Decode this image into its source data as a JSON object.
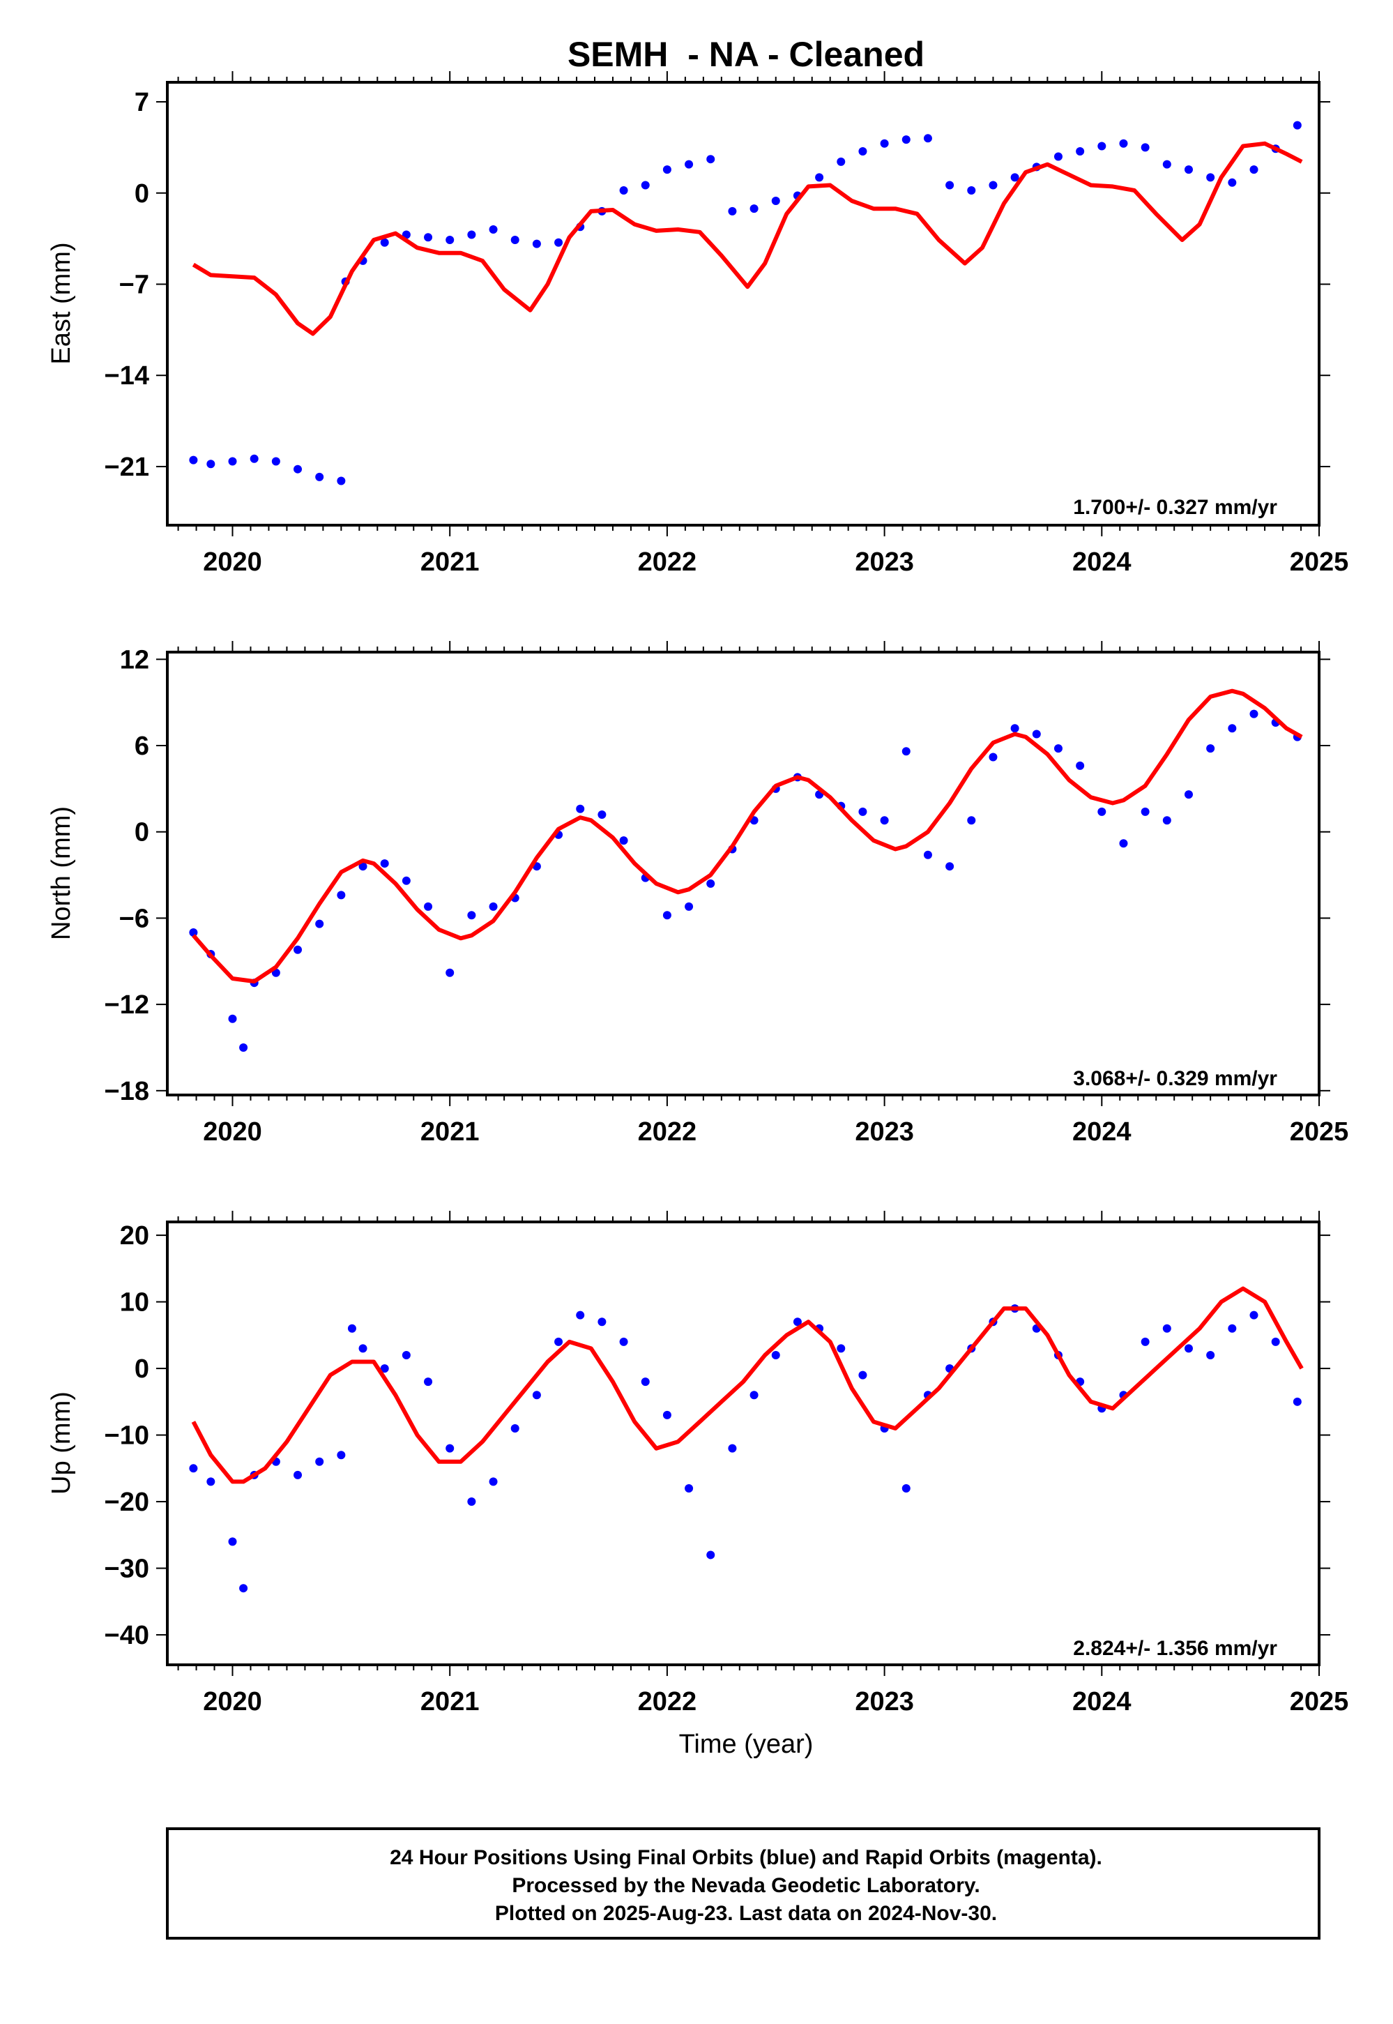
{
  "title": "SEMH  - NA - Cleaned",
  "xlabel": "Time (year)",
  "footer": {
    "lines": [
      "24 Hour Positions Using Final Orbits (blue) and Rapid Orbits (magenta).",
      "Processed by the Nevada Geodetic Laboratory.",
      "Plotted on 2025-Aug-23. Last data on 2024-Nov-30."
    ]
  },
  "colors": {
    "data_points": "#0000ff",
    "model_fit": "#ff0000",
    "frame": "#000000"
  },
  "chart_data": [
    {
      "type": "scatter",
      "panel": "east",
      "ylabel": "East (mm)",
      "rate_text": "1.700+/- 0.327 mm/yr",
      "xlim": [
        2019.7,
        2025.0
      ],
      "ylim": [
        -25.5,
        8.5
      ],
      "xticks": [
        2020,
        2021,
        2022,
        2023,
        2024,
        2025
      ],
      "yticks": [
        7,
        0,
        -7,
        -14,
        -21
      ],
      "series": [
        {
          "role": "final-orbit-positions",
          "x": [
            2019.82,
            2019.9,
            2020.0,
            2020.1,
            2020.2,
            2020.3,
            2020.4,
            2020.5,
            2020.52,
            2020.6,
            2020.7,
            2020.8,
            2020.9,
            2021.0,
            2021.1,
            2021.2,
            2021.3,
            2021.4,
            2021.5,
            2021.6,
            2021.7,
            2021.8,
            2021.9,
            2022.0,
            2022.1,
            2022.2,
            2022.3,
            2022.4,
            2022.5,
            2022.6,
            2022.7,
            2022.8,
            2022.9,
            2023.0,
            2023.1,
            2023.2,
            2023.3,
            2023.4,
            2023.5,
            2023.6,
            2023.7,
            2023.8,
            2023.9,
            2024.0,
            2024.1,
            2024.2,
            2024.3,
            2024.4,
            2024.5,
            2024.6,
            2024.7,
            2024.8,
            2024.9
          ],
          "y": [
            -20.5,
            -20.8,
            -20.6,
            -20.4,
            -20.6,
            -21.2,
            -21.8,
            -22.1,
            -6.8,
            -5.2,
            -3.8,
            -3.2,
            -3.4,
            -3.6,
            -3.2,
            -2.8,
            -3.6,
            -3.9,
            -3.8,
            -2.6,
            -1.4,
            0.2,
            0.6,
            1.8,
            2.2,
            2.6,
            -1.4,
            -1.2,
            -0.6,
            -0.2,
            1.2,
            2.4,
            3.2,
            3.8,
            4.1,
            4.2,
            0.6,
            0.2,
            0.6,
            1.2,
            2.0,
            2.8,
            3.2,
            3.6,
            3.8,
            3.5,
            2.2,
            1.8,
            1.2,
            0.8,
            1.8,
            3.4,
            5.2
          ]
        },
        {
          "role": "model-fit",
          "x": [
            2019.82,
            2019.9,
            2020.0,
            2020.1,
            2020.2,
            2020.3,
            2020.37,
            2020.45,
            2020.55,
            2020.65,
            2020.75,
            2020.85,
            2020.95,
            2021.05,
            2021.15,
            2021.25,
            2021.37,
            2021.45,
            2021.55,
            2021.65,
            2021.75,
            2021.85,
            2021.95,
            2022.05,
            2022.15,
            2022.25,
            2022.37,
            2022.45,
            2022.55,
            2022.65,
            2022.75,
            2022.85,
            2022.95,
            2023.05,
            2023.15,
            2023.25,
            2023.37,
            2023.45,
            2023.55,
            2023.65,
            2023.75,
            2023.85,
            2023.95,
            2024.05,
            2024.15,
            2024.25,
            2024.37,
            2024.45,
            2024.55,
            2024.65,
            2024.75,
            2024.85,
            2024.92
          ],
          "y": [
            -5.5,
            -6.3,
            -6.4,
            -6.5,
            -7.8,
            -10.0,
            -10.8,
            -9.5,
            -6.0,
            -3.6,
            -3.1,
            -4.2,
            -4.6,
            -4.6,
            -5.2,
            -7.4,
            -9.0,
            -7.0,
            -3.4,
            -1.4,
            -1.3,
            -2.4,
            -2.9,
            -2.8,
            -3.0,
            -4.8,
            -7.2,
            -5.4,
            -1.6,
            0.5,
            0.6,
            -0.6,
            -1.2,
            -1.2,
            -1.6,
            -3.6,
            -5.4,
            -4.2,
            -0.8,
            1.6,
            2.2,
            1.4,
            0.6,
            0.5,
            0.2,
            -1.6,
            -3.6,
            -2.4,
            1.2,
            3.6,
            3.8,
            3.0,
            2.4
          ]
        }
      ]
    },
    {
      "type": "scatter",
      "panel": "north",
      "ylabel": "North (mm)",
      "rate_text": "3.068+/- 0.329 mm/yr",
      "xlim": [
        2019.7,
        2025.0
      ],
      "ylim": [
        -18.3,
        12.5
      ],
      "xticks": [
        2020,
        2021,
        2022,
        2023,
        2024,
        2025
      ],
      "yticks": [
        12,
        6,
        0,
        -6,
        -12,
        -18
      ],
      "series": [
        {
          "role": "final-orbit-positions",
          "x": [
            2019.82,
            2019.9,
            2020.0,
            2020.05,
            2020.1,
            2020.2,
            2020.3,
            2020.4,
            2020.5,
            2020.6,
            2020.7,
            2020.8,
            2020.9,
            2021.0,
            2021.1,
            2021.2,
            2021.3,
            2021.4,
            2021.5,
            2021.6,
            2021.7,
            2021.8,
            2021.9,
            2022.0,
            2022.1,
            2022.2,
            2022.3,
            2022.4,
            2022.5,
            2022.6,
            2022.7,
            2022.8,
            2022.9,
            2023.0,
            2023.1,
            2023.2,
            2023.3,
            2023.4,
            2023.5,
            2023.6,
            2023.7,
            2023.8,
            2023.9,
            2024.0,
            2024.1,
            2024.2,
            2024.3,
            2024.4,
            2024.5,
            2024.6,
            2024.7,
            2024.8,
            2024.9
          ],
          "y": [
            -7.0,
            -8.5,
            -13.0,
            -15.0,
            -10.5,
            -9.8,
            -8.2,
            -6.4,
            -4.4,
            -2.4,
            -2.2,
            -3.4,
            -5.2,
            -9.8,
            -5.8,
            -5.2,
            -4.6,
            -2.4,
            -0.2,
            1.6,
            1.2,
            -0.6,
            -3.2,
            -5.8,
            -5.2,
            -3.6,
            -1.2,
            0.8,
            3.0,
            3.8,
            2.6,
            1.8,
            1.4,
            0.8,
            5.6,
            -1.6,
            -2.4,
            0.8,
            5.2,
            7.2,
            6.8,
            5.8,
            4.6,
            1.4,
            -0.8,
            1.4,
            0.8,
            2.6,
            5.8,
            7.2,
            8.2,
            7.6,
            6.6
          ]
        },
        {
          "role": "model-fit",
          "x": [
            2019.82,
            2019.9,
            2020.0,
            2020.1,
            2020.2,
            2020.3,
            2020.4,
            2020.5,
            2020.6,
            2020.65,
            2020.75,
            2020.85,
            2020.95,
            2021.05,
            2021.1,
            2021.2,
            2021.3,
            2021.4,
            2021.5,
            2021.6,
            2021.65,
            2021.75,
            2021.85,
            2021.95,
            2022.05,
            2022.1,
            2022.2,
            2022.3,
            2022.4,
            2022.5,
            2022.6,
            2022.65,
            2022.75,
            2022.85,
            2022.95,
            2023.05,
            2023.1,
            2023.2,
            2023.3,
            2023.4,
            2023.5,
            2023.6,
            2023.65,
            2023.75,
            2023.85,
            2023.95,
            2024.05,
            2024.1,
            2024.2,
            2024.3,
            2024.4,
            2024.5,
            2024.6,
            2024.65,
            2024.75,
            2024.85,
            2024.92
          ],
          "y": [
            -7.2,
            -8.6,
            -10.2,
            -10.4,
            -9.4,
            -7.4,
            -5.0,
            -2.8,
            -2.0,
            -2.2,
            -3.6,
            -5.4,
            -6.8,
            -7.4,
            -7.2,
            -6.2,
            -4.2,
            -1.8,
            0.2,
            1.0,
            0.8,
            -0.4,
            -2.2,
            -3.6,
            -4.2,
            -4.0,
            -3.0,
            -1.0,
            1.4,
            3.2,
            3.8,
            3.6,
            2.4,
            0.8,
            -0.6,
            -1.2,
            -1.0,
            0.0,
            2.0,
            4.4,
            6.2,
            6.8,
            6.6,
            5.4,
            3.6,
            2.4,
            2.0,
            2.2,
            3.2,
            5.4,
            7.8,
            9.4,
            9.8,
            9.6,
            8.6,
            7.2,
            6.6
          ]
        }
      ]
    },
    {
      "type": "scatter",
      "panel": "up",
      "ylabel": "Up (mm)",
      "rate_text": "2.824+/- 1.356 mm/yr",
      "xlim": [
        2019.7,
        2025.0
      ],
      "ylim": [
        -44.5,
        22
      ],
      "xticks": [
        2020,
        2021,
        2022,
        2023,
        2024,
        2025
      ],
      "yticks": [
        20,
        10,
        0,
        -10,
        -20,
        -30,
        -40
      ],
      "series": [
        {
          "role": "final-orbit-positions",
          "x": [
            2019.82,
            2019.9,
            2020.0,
            2020.05,
            2020.1,
            2020.2,
            2020.3,
            2020.4,
            2020.5,
            2020.55,
            2020.6,
            2020.7,
            2020.8,
            2020.9,
            2021.0,
            2021.1,
            2021.2,
            2021.3,
            2021.4,
            2021.5,
            2021.6,
            2021.7,
            2021.8,
            2021.9,
            2022.0,
            2022.1,
            2022.2,
            2022.3,
            2022.4,
            2022.5,
            2022.6,
            2022.7,
            2022.8,
            2022.9,
            2023.0,
            2023.1,
            2023.2,
            2023.3,
            2023.4,
            2023.5,
            2023.6,
            2023.7,
            2023.8,
            2023.9,
            2024.0,
            2024.1,
            2024.2,
            2024.3,
            2024.4,
            2024.5,
            2024.6,
            2024.7,
            2024.8,
            2024.9
          ],
          "y": [
            -15,
            -17,
            -26,
            -33,
            -16,
            -14,
            -16,
            -14,
            -13,
            6,
            3,
            0,
            2,
            -2,
            -12,
            -20,
            -17,
            -9,
            -4,
            4,
            8,
            7,
            4,
            -2,
            -7,
            -18,
            -28,
            -12,
            -4,
            2,
            7,
            6,
            3,
            -1,
            -9,
            -18,
            -4,
            0,
            3,
            7,
            9,
            6,
            2,
            -2,
            -6,
            -4,
            4,
            6,
            3,
            2,
            6,
            8,
            4,
            -5
          ]
        },
        {
          "role": "model-fit",
          "x": [
            2019.82,
            2019.9,
            2020.0,
            2020.05,
            2020.15,
            2020.25,
            2020.35,
            2020.45,
            2020.55,
            2020.65,
            2020.75,
            2020.85,
            2020.95,
            2021.05,
            2021.15,
            2021.25,
            2021.35,
            2021.45,
            2021.55,
            2021.65,
            2021.75,
            2021.85,
            2021.95,
            2022.05,
            2022.15,
            2022.25,
            2022.35,
            2022.45,
            2022.55,
            2022.65,
            2022.75,
            2022.85,
            2022.95,
            2023.05,
            2023.15,
            2023.25,
            2023.35,
            2023.45,
            2023.55,
            2023.65,
            2023.75,
            2023.85,
            2023.95,
            2024.05,
            2024.15,
            2024.25,
            2024.35,
            2024.45,
            2024.55,
            2024.65,
            2024.75,
            2024.85,
            2024.92
          ],
          "y": [
            -8,
            -13,
            -17,
            -17,
            -15,
            -11,
            -6,
            -1,
            1,
            1,
            -4,
            -10,
            -14,
            -14,
            -11,
            -7,
            -3,
            1,
            4,
            3,
            -2,
            -8,
            -12,
            -11,
            -8,
            -5,
            -2,
            2,
            5,
            7,
            4,
            -3,
            -8,
            -9,
            -6,
            -3,
            1,
            5,
            9,
            9,
            5,
            -1,
            -5,
            -6,
            -3,
            0,
            3,
            6,
            10,
            12,
            10,
            4,
            0
          ]
        }
      ]
    }
  ]
}
